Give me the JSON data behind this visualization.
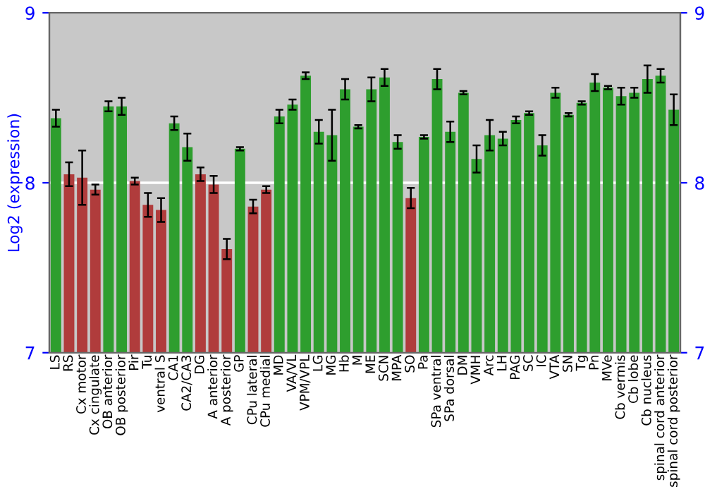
{
  "chart_data": {
    "type": "bar",
    "ylabel": "Log2 (expression)",
    "categories": [
      "LS",
      "RS",
      "Cx motor",
      "Cx cingulate",
      "OB anterior",
      "OB posterior",
      "Pir",
      "Tu",
      "ventral S",
      "CA1",
      "CA2/CA3",
      "DG",
      "A anterior",
      "A posterior",
      "GP",
      "CPu lateral",
      "CPu medial",
      "MD",
      "VA/VL",
      "VPM/VPL",
      "LG",
      "MG",
      "Hb",
      "M",
      "ME",
      "SCN",
      "MPA",
      "SO",
      "Pa",
      "SPa ventral",
      "SPa dorsal",
      "DM",
      "VMH",
      "Arc",
      "LH",
      "PAG",
      "SC",
      "IC",
      "VTA",
      "SN",
      "Tg",
      "Pn",
      "MVe",
      "Cb vermis",
      "Cb lobe",
      "Cb nucleus",
      "spinal cord anterior",
      "spinal cord posterior"
    ],
    "values": [
      8.38,
      8.05,
      8.03,
      7.96,
      8.45,
      8.45,
      8.01,
      7.87,
      7.84,
      8.35,
      8.21,
      8.05,
      7.99,
      7.61,
      8.2,
      7.86,
      7.96,
      8.39,
      8.46,
      8.63,
      8.3,
      8.28,
      8.55,
      8.33,
      8.55,
      8.62,
      8.24,
      7.91,
      8.27,
      8.61,
      8.3,
      8.53,
      8.14,
      8.28,
      8.26,
      8.37,
      8.41,
      8.22,
      8.53,
      8.4,
      8.47,
      8.59,
      8.56,
      8.51,
      8.53,
      8.61,
      8.63,
      8.43
    ],
    "errors": [
      0.05,
      0.07,
      0.16,
      0.03,
      0.03,
      0.05,
      0.02,
      0.07,
      0.07,
      0.04,
      0.08,
      0.04,
      0.05,
      0.06,
      0.01,
      0.04,
      0.02,
      0.04,
      0.03,
      0.02,
      0.07,
      0.15,
      0.06,
      0.01,
      0.07,
      0.05,
      0.04,
      0.06,
      0.01,
      0.06,
      0.06,
      0.01,
      0.08,
      0.09,
      0.04,
      0.02,
      0.01,
      0.06,
      0.03,
      0.01,
      0.01,
      0.05,
      0.01,
      0.05,
      0.03,
      0.08,
      0.04,
      0.09
    ],
    "colors": [
      "#2e9e2e",
      "#b03c3c",
      "#b03c3c",
      "#b03c3c",
      "#2e9e2e",
      "#2e9e2e",
      "#b03c3c",
      "#b03c3c",
      "#b03c3c",
      "#2e9e2e",
      "#2e9e2e",
      "#b03c3c",
      "#b03c3c",
      "#b03c3c",
      "#2e9e2e",
      "#b03c3c",
      "#b03c3c",
      "#2e9e2e",
      "#2e9e2e",
      "#2e9e2e",
      "#2e9e2e",
      "#2e9e2e",
      "#2e9e2e",
      "#2e9e2e",
      "#2e9e2e",
      "#2e9e2e",
      "#2e9e2e",
      "#b03c3c",
      "#2e9e2e",
      "#2e9e2e",
      "#2e9e2e",
      "#2e9e2e",
      "#2e9e2e",
      "#2e9e2e",
      "#2e9e2e",
      "#2e9e2e",
      "#2e9e2e",
      "#2e9e2e",
      "#2e9e2e",
      "#2e9e2e",
      "#2e9e2e",
      "#2e9e2e",
      "#2e9e2e",
      "#2e9e2e",
      "#2e9e2e",
      "#2e9e2e",
      "#2e9e2e",
      "#2e9e2e"
    ],
    "ylim": [
      7,
      9
    ],
    "yticks": [
      7,
      8,
      9
    ],
    "y2lim": [
      7,
      9
    ],
    "y2ticks": [
      7,
      8,
      9
    ],
    "grid": "y"
  }
}
